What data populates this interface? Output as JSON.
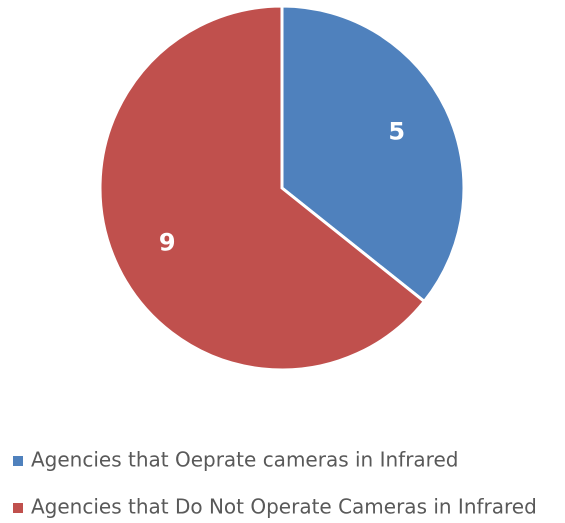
{
  "chart_data": {
    "type": "pie",
    "categories": [
      "Agencies that Oeprate cameras in Infrared",
      "Agencies that Do Not Operate Cameras in Infrared"
    ],
    "values": [
      5,
      9
    ],
    "colors": [
      "#4f81bd",
      "#c0504d"
    ]
  }
}
